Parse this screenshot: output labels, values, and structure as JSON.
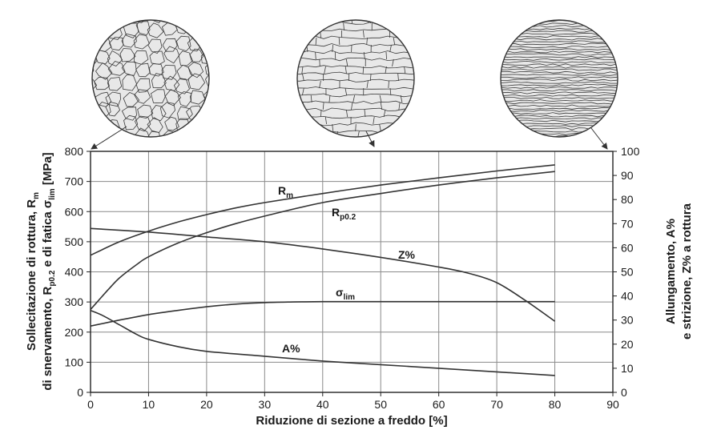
{
  "chart_data": {
    "type": "line",
    "xlabel": "Riduzione di sezione a freddo [%]",
    "xlim": [
      0,
      90
    ],
    "x_ticks": [
      0,
      10,
      20,
      30,
      40,
      50,
      60,
      70,
      80,
      90
    ],
    "ylim_left": [
      0,
      800
    ],
    "y_ticks_left": [
      0,
      100,
      200,
      300,
      400,
      500,
      600,
      700,
      800
    ],
    "ylabel_left_line1": {
      "main": "Sollecitazione di rottura, R",
      "sub": "m"
    },
    "ylabel_left_line2": {
      "p1": "di snervamento, R",
      "sub1": "p0.2",
      "p2": " e di fatica ",
      "sym": "σ",
      "sub2": "lim",
      "p3": " [MPa]"
    },
    "ylim_right": [
      0,
      100
    ],
    "y_ticks_right": [
      0,
      10,
      20,
      30,
      40,
      50,
      60,
      70,
      80,
      90,
      100
    ],
    "ylabel_right_line1": "Allungamento, A%",
    "ylabel_right_line2": "e strizione, Z% a rottura",
    "grid": true,
    "micrographs": [
      "equiaxed-grains",
      "elongated-grains",
      "fibrous-grains"
    ],
    "series": [
      {
        "name": "Rm",
        "label_main": "R",
        "label_sub": "m",
        "axis": "left",
        "x": [
          0,
          5,
          10,
          15,
          20,
          25,
          30,
          40,
          50,
          60,
          70,
          80
        ],
        "y": [
          455,
          500,
          535,
          565,
          590,
          612,
          630,
          660,
          688,
          712,
          735,
          755
        ]
      },
      {
        "name": "Rp0.2",
        "label_main": "R",
        "label_sub": "p0.2",
        "axis": "left",
        "x": [
          0,
          3,
          5,
          8,
          10,
          15,
          20,
          25,
          30,
          40,
          50,
          60,
          70,
          80
        ],
        "y": [
          275,
          340,
          380,
          425,
          450,
          495,
          530,
          560,
          585,
          630,
          660,
          688,
          712,
          733
        ]
      },
      {
        "name": "Z%",
        "label_main": "Z%",
        "label_sub": "",
        "axis": "right",
        "x": [
          0,
          10,
          20,
          30,
          40,
          50,
          60,
          65,
          70,
          75,
          80
        ],
        "y": [
          68,
          66.5,
          64.5,
          62.5,
          59.5,
          56,
          52,
          49.5,
          45.5,
          38,
          29.5
        ]
      },
      {
        "name": "σlim",
        "label_main": "σ",
        "label_sub": "lim",
        "axis": "left",
        "x": [
          0,
          5,
          10,
          15,
          20,
          25,
          30,
          35,
          40,
          50,
          60,
          70,
          80
        ],
        "y": [
          220,
          240,
          258,
          272,
          284,
          293,
          298,
          300,
          301,
          301,
          301,
          301,
          301
        ]
      },
      {
        "name": "A%",
        "label_main": "A%",
        "label_sub": "",
        "axis": "right",
        "x": [
          0,
          2,
          5,
          8,
          10,
          15,
          20,
          30,
          40,
          50,
          60,
          70,
          80
        ],
        "y": [
          34,
          32,
          28,
          24,
          22,
          19,
          17,
          15,
          13,
          11.5,
          10,
          8.5,
          7
        ]
      }
    ]
  }
}
